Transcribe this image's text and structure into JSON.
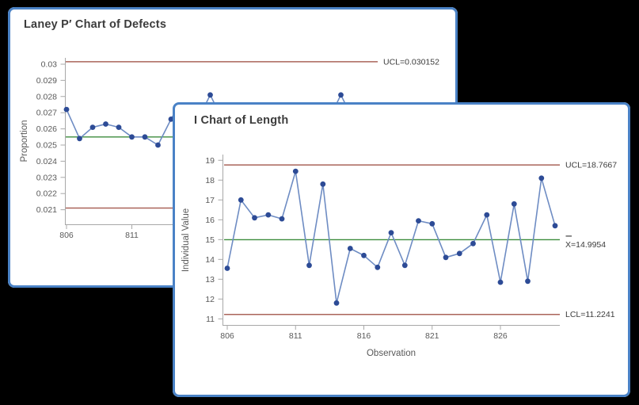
{
  "desktop": {
    "background_color": "#000000"
  },
  "colors": {
    "window_border": "#4a82c6",
    "window_background": "#ffffff",
    "title_text": "#3c3c3c",
    "series_line": "#6e8cc3",
    "marker_fill": "#2d4b96",
    "limit_line": "#aa645a",
    "center_line": "#3c8c3c",
    "axis_text": "#595959",
    "axis_line": "#a8a8a8",
    "limit_label_text": "#3c3c3c"
  },
  "chart_data": [
    {
      "type": "line",
      "chart_kind": "control-chart",
      "title": "Laney P′ Chart of Defects",
      "ylabel": "Proportion",
      "ytick_labels": [
        "0.03",
        "0.029",
        "0.028",
        "0.027",
        "0.026",
        "0.025",
        "0.024",
        "0.023",
        "0.022",
        "0.021"
      ],
      "yticks": [
        0.03,
        0.029,
        0.028,
        0.027,
        0.026,
        0.025,
        0.024,
        0.023,
        0.022,
        0.021
      ],
      "xticks": [
        806,
        811
      ],
      "ylim": [
        0.0201,
        0.0304
      ],
      "x": [
        806,
        807,
        808,
        809,
        810,
        811,
        812,
        813,
        814
      ],
      "values": [
        0.0272,
        0.0254,
        0.0261,
        0.0263,
        0.0261,
        0.0255,
        0.0255,
        0.025,
        0.0266
      ],
      "occluded_peaks": {
        "x": [
          817,
          827
        ],
        "values": [
          0.0281,
          0.0281
        ]
      },
      "ucl": {
        "value": 0.030152,
        "label": "UCL=0.030152"
      },
      "center_value_estimate": 0.0255,
      "lcl_value_estimate": 0.0211,
      "legend_position": "right-of-plot"
    },
    {
      "type": "line",
      "chart_kind": "control-chart",
      "title": "I Chart of Length",
      "xlabel": "Observation",
      "ylabel": "Individual Value",
      "yticks": [
        19,
        18,
        17,
        16,
        15,
        14,
        13,
        12,
        11
      ],
      "xticks": [
        806,
        811,
        816,
        821,
        826
      ],
      "ylim": [
        10.7,
        19.3
      ],
      "x": [
        806,
        807,
        808,
        809,
        810,
        811,
        812,
        813,
        814,
        815,
        816,
        817,
        818,
        819,
        820,
        821,
        822,
        823,
        824,
        825,
        826,
        827,
        828,
        829,
        830
      ],
      "values": [
        13.55,
        17.0,
        16.1,
        16.25,
        16.05,
        18.45,
        13.7,
        17.8,
        11.8,
        14.55,
        14.2,
        13.6,
        15.35,
        13.7,
        15.95,
        15.8,
        14.1,
        14.3,
        14.8,
        16.25,
        12.85,
        16.8,
        12.9,
        18.1,
        15.7
      ],
      "ucl": {
        "value": 18.7667,
        "label": "UCL=18.7667"
      },
      "center": {
        "value": 14.9954,
        "label": "X̄=14.9954"
      },
      "lcl": {
        "value": 11.2241,
        "label": "LCL=11.2241"
      },
      "legend_position": "right-of-plot"
    }
  ]
}
